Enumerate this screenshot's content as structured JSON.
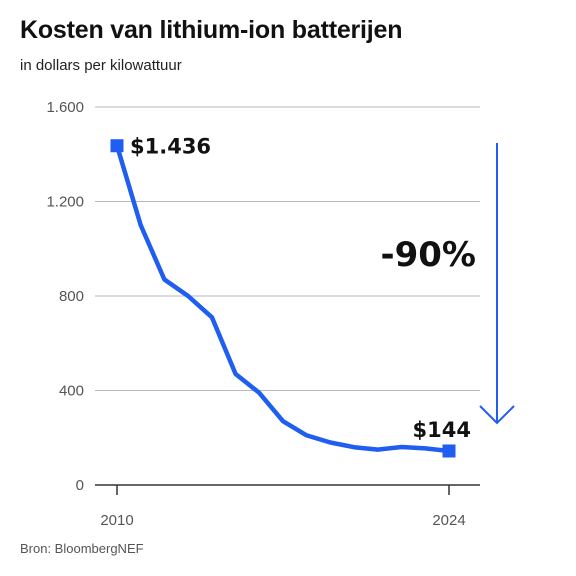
{
  "header": {
    "title": "Kosten van lithium-ion batterijen",
    "subtitle": "in dollars per kilowattuur"
  },
  "footer": {
    "source": "Bron: BloombergNEF"
  },
  "chart_data": {
    "type": "line",
    "title": "Kosten van lithium-ion batterijen",
    "subtitle": "in dollars per kilowattuur",
    "xlabel": "",
    "ylabel": "",
    "x": [
      2010,
      2011,
      2012,
      2013,
      2014,
      2015,
      2016,
      2017,
      2018,
      2019,
      2020,
      2021,
      2022,
      2023,
      2024
    ],
    "series": [
      {
        "values": [
          1436,
          1100,
          870,
          800,
          710,
          470,
          390,
          270,
          210,
          180,
          160,
          150,
          161,
          155,
          144
        ],
        "color": "#1f5ef0"
      }
    ],
    "ylim": [
      0,
      1600
    ],
    "xlim": [
      2010,
      2024
    ],
    "y_ticks": [
      0,
      400,
      800,
      1200,
      1600
    ],
    "y_tick_labels": [
      "0",
      "400",
      "800",
      "1.200",
      "1.600"
    ],
    "x_ticks": [
      2010,
      2024
    ],
    "x_tick_labels": [
      "2010",
      "2024"
    ],
    "grid": true,
    "legend": "none",
    "annotations": {
      "start_label": "$1.436",
      "end_label": "$144",
      "change_label": "-90%"
    },
    "colors": {
      "line": "#1f5ef0",
      "grid": "#b9b9b9",
      "axis": "#333333",
      "arrow": "#1f5ef0"
    }
  }
}
